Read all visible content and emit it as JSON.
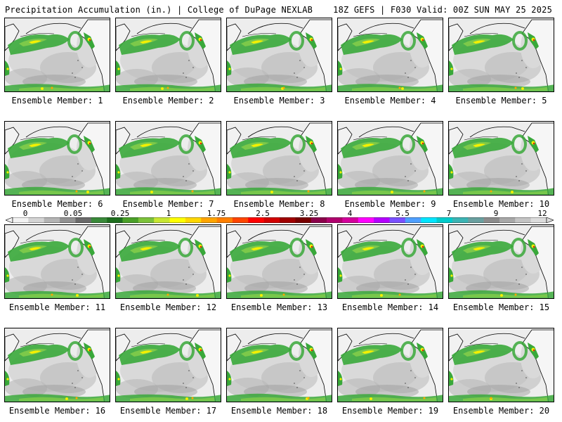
{
  "header": {
    "title": "Precipitation Accumulation (in.) | College of DuPage NEXLAB",
    "run_info": "18Z GEFS | F030 Valid: 00Z SUN MAY 25 2025"
  },
  "panels": [
    {
      "label": "Ensemble Member: 1"
    },
    {
      "label": "Ensemble Member: 2"
    },
    {
      "label": "Ensemble Member: 3"
    },
    {
      "label": "Ensemble Member: 4"
    },
    {
      "label": "Ensemble Member: 5"
    },
    {
      "label": "Ensemble Member: 6"
    },
    {
      "label": "Ensemble Member: 7"
    },
    {
      "label": "Ensemble Member: 8"
    },
    {
      "label": "Ensemble Member: 9"
    },
    {
      "label": "Ensemble Member: 10"
    },
    {
      "label": "Ensemble Member: 11"
    },
    {
      "label": "Ensemble Member: 12"
    },
    {
      "label": "Ensemble Member: 13"
    },
    {
      "label": "Ensemble Member: 14"
    },
    {
      "label": "Ensemble Member: 15"
    },
    {
      "label": "Ensemble Member: 16"
    },
    {
      "label": "Ensemble Member: 17"
    },
    {
      "label": "Ensemble Member: 18"
    },
    {
      "label": "Ensemble Member: 19"
    },
    {
      "label": "Ensemble Member: 20"
    }
  ],
  "colorbar": {
    "labels": [
      "0",
      "0.05",
      "0.25",
      "1",
      "1.75",
      "2.5",
      "3.25",
      "4",
      "5.5",
      "7",
      "9",
      "12"
    ],
    "colors": [
      "#f2f2f2",
      "#d4d4d4",
      "#b4b4b4",
      "#929292",
      "#6a6a6a",
      "#3a8a3a",
      "#1e6e1e",
      "#4aa028",
      "#7cc23a",
      "#c8e632",
      "#ffff00",
      "#ffd700",
      "#ffa500",
      "#ff7f00",
      "#ff4500",
      "#ff0000",
      "#d20000",
      "#a00000",
      "#780000",
      "#8b004a",
      "#b0006e",
      "#d4009c",
      "#ff00ff",
      "#b400ff",
      "#7a50ff",
      "#4fa0ff",
      "#00e5ff",
      "#00cccc",
      "#3cb4b4",
      "#6aa0a0",
      "#8c8c8c",
      "#a8a8a8",
      "#c4c4c4",
      "#dcdcdc"
    ]
  },
  "map_palette": {
    "background": "#ededed",
    "light_gray": "#d9d9d9",
    "mid_gray": "#b8b8b8",
    "dark_gray": "#9a9a9a",
    "green": "#39a83a",
    "light_green": "#7cc94a",
    "yellow": "#f4f000",
    "orange": "#ffa500",
    "red": "#e01010",
    "coastline": "#000000"
  }
}
